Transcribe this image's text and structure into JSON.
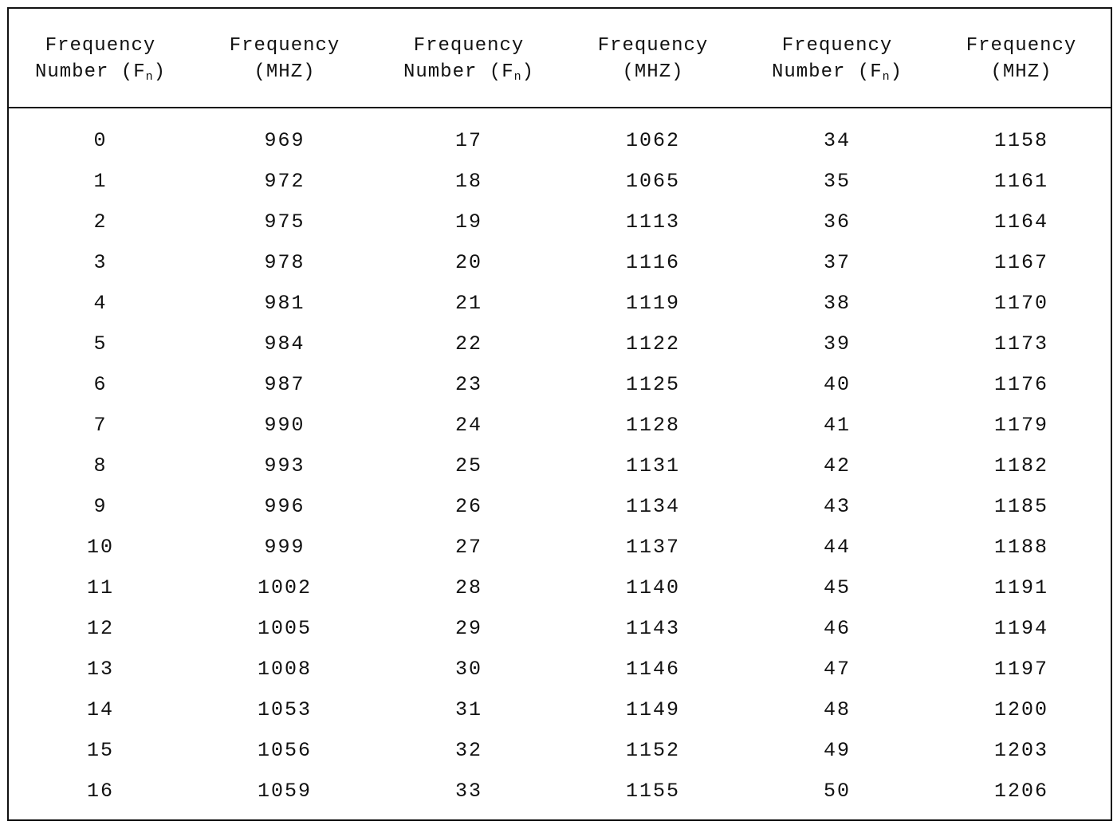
{
  "table": {
    "headers": [
      {
        "line1": "Frequency",
        "line2": "Number (F",
        "sub": "n",
        "suffix": ")"
      },
      {
        "line1": "Frequency",
        "line2": "(MHZ)",
        "sub": "",
        "suffix": ""
      },
      {
        "line1": "Frequency",
        "line2": "Number (F",
        "sub": "n",
        "suffix": ")"
      },
      {
        "line1": "Frequency",
        "line2": "(MHZ)",
        "sub": "",
        "suffix": ""
      },
      {
        "line1": "Frequency",
        "line2": "Number (F",
        "sub": "n",
        "suffix": ")"
      },
      {
        "line1": "Frequency",
        "line2": "(MHZ)",
        "sub": "",
        "suffix": ""
      }
    ],
    "rows": [
      [
        "0",
        "969",
        "17",
        "1062",
        "34",
        "1158"
      ],
      [
        "1",
        "972",
        "18",
        "1065",
        "35",
        "1161"
      ],
      [
        "2",
        "975",
        "19",
        "1113",
        "36",
        "1164"
      ],
      [
        "3",
        "978",
        "20",
        "1116",
        "37",
        "1167"
      ],
      [
        "4",
        "981",
        "21",
        "1119",
        "38",
        "1170"
      ],
      [
        "5",
        "984",
        "22",
        "1122",
        "39",
        "1173"
      ],
      [
        "6",
        "987",
        "23",
        "1125",
        "40",
        "1176"
      ],
      [
        "7",
        "990",
        "24",
        "1128",
        "41",
        "1179"
      ],
      [
        "8",
        "993",
        "25",
        "1131",
        "42",
        "1182"
      ],
      [
        "9",
        "996",
        "26",
        "1134",
        "43",
        "1185"
      ],
      [
        "10",
        "999",
        "27",
        "1137",
        "44",
        "1188"
      ],
      [
        "11",
        "1002",
        "28",
        "1140",
        "45",
        "1191"
      ],
      [
        "12",
        "1005",
        "29",
        "1143",
        "46",
        "1194"
      ],
      [
        "13",
        "1008",
        "30",
        "1146",
        "47",
        "1197"
      ],
      [
        "14",
        "1053",
        "31",
        "1149",
        "48",
        "1200"
      ],
      [
        "15",
        "1056",
        "32",
        "1152",
        "49",
        "1203"
      ],
      [
        "16",
        "1059",
        "33",
        "1155",
        "50",
        "1206"
      ]
    ]
  }
}
